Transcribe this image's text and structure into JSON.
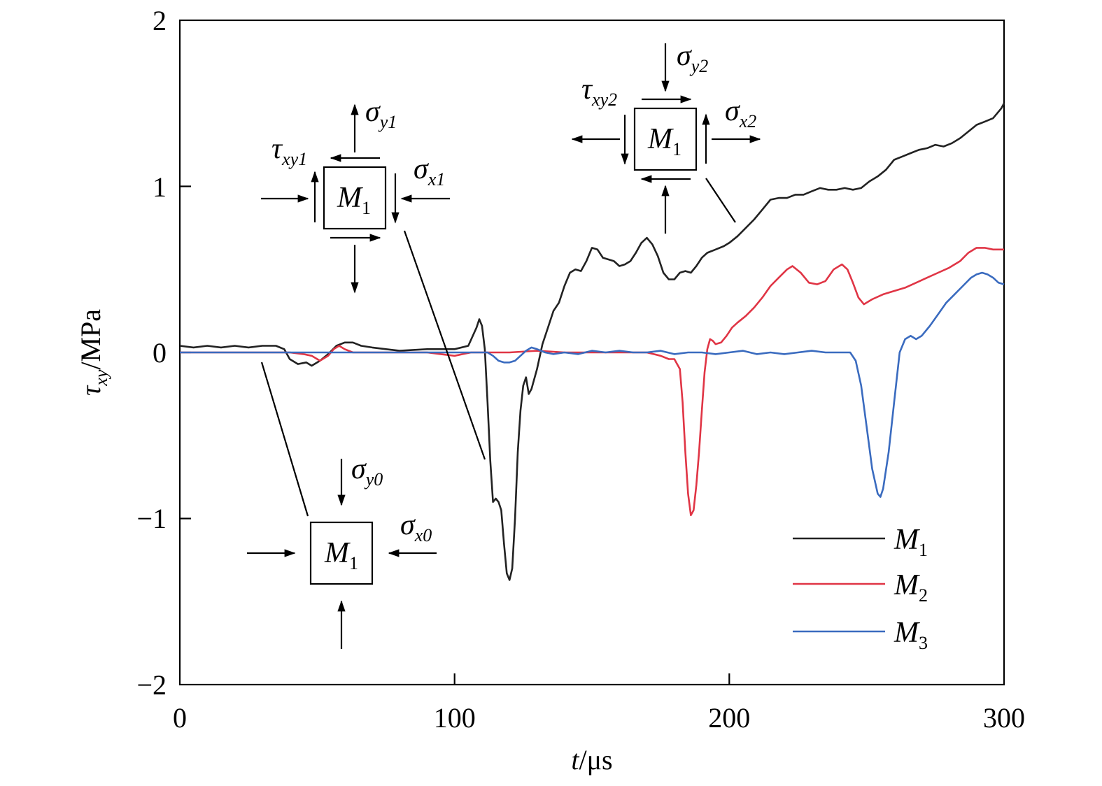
{
  "chart_data": {
    "type": "line",
    "xlabel": {
      "var": "t",
      "unit": "/μs"
    },
    "ylabel": {
      "sym": "τ",
      "sub": "xy",
      "unit": "/MPa"
    },
    "xlim": [
      0,
      300
    ],
    "ylim": [
      -2,
      2
    ],
    "xticks": [
      "0",
      "100",
      "200",
      "300"
    ],
    "yticks": [
      "−2",
      "−1",
      "0",
      "1",
      "2"
    ],
    "grid": false,
    "legend_position": "bottom-right",
    "series": [
      {
        "name": "M1",
        "label_main": "M",
        "label_sub": "1",
        "color": "#222222",
        "points": [
          [
            0,
            0.04
          ],
          [
            5,
            0.03
          ],
          [
            10,
            0.04
          ],
          [
            15,
            0.03
          ],
          [
            20,
            0.04
          ],
          [
            25,
            0.03
          ],
          [
            30,
            0.04
          ],
          [
            35,
            0.04
          ],
          [
            38,
            0.02
          ],
          [
            40,
            -0.04
          ],
          [
            43,
            -0.07
          ],
          [
            46,
            -0.06
          ],
          [
            48,
            -0.08
          ],
          [
            51,
            -0.05
          ],
          [
            54,
            -0.01
          ],
          [
            57,
            0.04
          ],
          [
            60,
            0.06
          ],
          [
            63,
            0.06
          ],
          [
            66,
            0.04
          ],
          [
            70,
            0.03
          ],
          [
            75,
            0.02
          ],
          [
            80,
            0.01
          ],
          [
            90,
            0.02
          ],
          [
            100,
            0.02
          ],
          [
            105,
            0.04
          ],
          [
            108,
            0.15
          ],
          [
            109,
            0.2
          ],
          [
            110,
            0.16
          ],
          [
            111,
            0.02
          ],
          [
            112,
            -0.3
          ],
          [
            113,
            -0.65
          ],
          [
            114,
            -0.9
          ],
          [
            115,
            -0.88
          ],
          [
            116,
            -0.9
          ],
          [
            117,
            -0.95
          ],
          [
            118,
            -1.15
          ],
          [
            119,
            -1.33
          ],
          [
            120,
            -1.37
          ],
          [
            121,
            -1.3
          ],
          [
            122,
            -1.0
          ],
          [
            123,
            -0.6
          ],
          [
            124,
            -0.35
          ],
          [
            125,
            -0.2
          ],
          [
            126,
            -0.15
          ],
          [
            127,
            -0.25
          ],
          [
            128,
            -0.22
          ],
          [
            130,
            -0.1
          ],
          [
            132,
            0.05
          ],
          [
            134,
            0.15
          ],
          [
            136,
            0.25
          ],
          [
            138,
            0.3
          ],
          [
            140,
            0.4
          ],
          [
            142,
            0.48
          ],
          [
            144,
            0.5
          ],
          [
            146,
            0.49
          ],
          [
            148,
            0.55
          ],
          [
            150,
            0.63
          ],
          [
            152,
            0.62
          ],
          [
            154,
            0.57
          ],
          [
            156,
            0.56
          ],
          [
            158,
            0.55
          ],
          [
            160,
            0.52
          ],
          [
            162,
            0.53
          ],
          [
            164,
            0.55
          ],
          [
            166,
            0.6
          ],
          [
            168,
            0.66
          ],
          [
            170,
            0.69
          ],
          [
            172,
            0.65
          ],
          [
            174,
            0.58
          ],
          [
            176,
            0.48
          ],
          [
            178,
            0.44
          ],
          [
            180,
            0.44
          ],
          [
            182,
            0.48
          ],
          [
            184,
            0.49
          ],
          [
            186,
            0.48
          ],
          [
            188,
            0.52
          ],
          [
            190,
            0.57
          ],
          [
            192,
            0.6
          ],
          [
            195,
            0.62
          ],
          [
            198,
            0.64
          ],
          [
            200,
            0.66
          ],
          [
            203,
            0.7
          ],
          [
            206,
            0.75
          ],
          [
            209,
            0.8
          ],
          [
            212,
            0.86
          ],
          [
            215,
            0.92
          ],
          [
            218,
            0.93
          ],
          [
            221,
            0.93
          ],
          [
            224,
            0.95
          ],
          [
            227,
            0.95
          ],
          [
            230,
            0.97
          ],
          [
            233,
            0.99
          ],
          [
            236,
            0.98
          ],
          [
            239,
            0.98
          ],
          [
            242,
            0.99
          ],
          [
            245,
            0.98
          ],
          [
            248,
            0.99
          ],
          [
            251,
            1.03
          ],
          [
            254,
            1.06
          ],
          [
            257,
            1.1
          ],
          [
            260,
            1.16
          ],
          [
            263,
            1.18
          ],
          [
            266,
            1.2
          ],
          [
            269,
            1.22
          ],
          [
            272,
            1.23
          ],
          [
            275,
            1.25
          ],
          [
            278,
            1.24
          ],
          [
            281,
            1.26
          ],
          [
            284,
            1.29
          ],
          [
            287,
            1.33
          ],
          [
            290,
            1.37
          ],
          [
            293,
            1.39
          ],
          [
            296,
            1.41
          ],
          [
            299,
            1.47
          ],
          [
            300,
            1.5
          ]
        ]
      },
      {
        "name": "M2",
        "label_main": "M",
        "label_sub": "2",
        "color": "#e03545",
        "points": [
          [
            0,
            0.0
          ],
          [
            40,
            0.0
          ],
          [
            45,
            -0.01
          ],
          [
            48,
            -0.02
          ],
          [
            51,
            -0.05
          ],
          [
            54,
            -0.02
          ],
          [
            56,
            0.02
          ],
          [
            58,
            0.04
          ],
          [
            60,
            0.02
          ],
          [
            63,
            0.0
          ],
          [
            70,
            0.0
          ],
          [
            90,
            0.0
          ],
          [
            95,
            -0.01
          ],
          [
            100,
            -0.02
          ],
          [
            103,
            -0.01
          ],
          [
            106,
            0.0
          ],
          [
            110,
            0.0
          ],
          [
            120,
            0.0
          ],
          [
            130,
            0.01
          ],
          [
            140,
            0.0
          ],
          [
            150,
            0.0
          ],
          [
            160,
            0.0
          ],
          [
            170,
            0.0
          ],
          [
            175,
            -0.02
          ],
          [
            178,
            -0.04
          ],
          [
            180,
            -0.04
          ],
          [
            182,
            -0.1
          ],
          [
            183,
            -0.3
          ],
          [
            184,
            -0.6
          ],
          [
            185,
            -0.85
          ],
          [
            186,
            -0.98
          ],
          [
            187,
            -0.95
          ],
          [
            188,
            -0.8
          ],
          [
            189,
            -0.6
          ],
          [
            190,
            -0.35
          ],
          [
            191,
            -0.12
          ],
          [
            192,
            0.02
          ],
          [
            193,
            0.08
          ],
          [
            194,
            0.07
          ],
          [
            195,
            0.05
          ],
          [
            197,
            0.06
          ],
          [
            199,
            0.1
          ],
          [
            201,
            0.15
          ],
          [
            203,
            0.18
          ],
          [
            206,
            0.22
          ],
          [
            209,
            0.27
          ],
          [
            212,
            0.33
          ],
          [
            215,
            0.4
          ],
          [
            218,
            0.45
          ],
          [
            221,
            0.5
          ],
          [
            223,
            0.52
          ],
          [
            226,
            0.48
          ],
          [
            229,
            0.42
          ],
          [
            232,
            0.41
          ],
          [
            235,
            0.43
          ],
          [
            238,
            0.5
          ],
          [
            241,
            0.53
          ],
          [
            243,
            0.5
          ],
          [
            245,
            0.42
          ],
          [
            247,
            0.33
          ],
          [
            249,
            0.29
          ],
          [
            252,
            0.32
          ],
          [
            256,
            0.35
          ],
          [
            260,
            0.37
          ],
          [
            264,
            0.39
          ],
          [
            268,
            0.42
          ],
          [
            272,
            0.45
          ],
          [
            276,
            0.48
          ],
          [
            280,
            0.51
          ],
          [
            284,
            0.55
          ],
          [
            287,
            0.6
          ],
          [
            290,
            0.63
          ],
          [
            293,
            0.63
          ],
          [
            296,
            0.62
          ],
          [
            300,
            0.62
          ]
        ]
      },
      {
        "name": "M3",
        "label_main": "M",
        "label_sub": "3",
        "color": "#3a6bbf",
        "points": [
          [
            0,
            0.0
          ],
          [
            50,
            0.0
          ],
          [
            100,
            0.0
          ],
          [
            112,
            0.0
          ],
          [
            114,
            -0.02
          ],
          [
            116,
            -0.05
          ],
          [
            118,
            -0.06
          ],
          [
            120,
            -0.06
          ],
          [
            122,
            -0.05
          ],
          [
            124,
            -0.02
          ],
          [
            126,
            0.01
          ],
          [
            128,
            0.03
          ],
          [
            130,
            0.02
          ],
          [
            133,
            0.0
          ],
          [
            136,
            -0.01
          ],
          [
            140,
            0.0
          ],
          [
            145,
            -0.01
          ],
          [
            150,
            0.01
          ],
          [
            155,
            0.0
          ],
          [
            160,
            0.01
          ],
          [
            165,
            0.0
          ],
          [
            170,
            0.0
          ],
          [
            175,
            0.01
          ],
          [
            180,
            -0.01
          ],
          [
            185,
            0.0
          ],
          [
            190,
            0.0
          ],
          [
            195,
            -0.01
          ],
          [
            200,
            0.0
          ],
          [
            205,
            0.01
          ],
          [
            210,
            -0.01
          ],
          [
            215,
            0.0
          ],
          [
            220,
            -0.01
          ],
          [
            225,
            0.0
          ],
          [
            230,
            0.01
          ],
          [
            235,
            0.0
          ],
          [
            240,
            0.0
          ],
          [
            244,
            0.0
          ],
          [
            246,
            -0.05
          ],
          [
            248,
            -0.2
          ],
          [
            250,
            -0.45
          ],
          [
            252,
            -0.7
          ],
          [
            254,
            -0.85
          ],
          [
            255,
            -0.87
          ],
          [
            256,
            -0.82
          ],
          [
            258,
            -0.6
          ],
          [
            260,
            -0.3
          ],
          [
            262,
            0.0
          ],
          [
            264,
            0.08
          ],
          [
            266,
            0.1
          ],
          [
            268,
            0.08
          ],
          [
            270,
            0.1
          ],
          [
            273,
            0.16
          ],
          [
            276,
            0.23
          ],
          [
            279,
            0.3
          ],
          [
            282,
            0.35
          ],
          [
            285,
            0.4
          ],
          [
            288,
            0.45
          ],
          [
            290,
            0.47
          ],
          [
            292,
            0.48
          ],
          [
            294,
            0.47
          ],
          [
            296,
            0.45
          ],
          [
            298,
            0.42
          ],
          [
            300,
            0.41
          ]
        ]
      }
    ],
    "insets": [
      {
        "id": "inset0",
        "box_main": "M",
        "box_sub": "1",
        "sx_sym": "σ",
        "sx_sub": "x0",
        "sy_sym": "σ",
        "sy_sub": "y0"
      },
      {
        "id": "inset1",
        "box_main": "M",
        "box_sub": "1",
        "sx_sym": "σ",
        "sx_sub": "x1",
        "sy_sym": "σ",
        "sy_sub": "y1",
        "tau_sym": "τ",
        "tau_sub": "xy1"
      },
      {
        "id": "inset2",
        "box_main": "M",
        "box_sub": "1",
        "sx_sym": "σ",
        "sx_sub": "x2",
        "sy_sym": "σ",
        "sy_sub": "y2",
        "tau_sym": "τ",
        "tau_sub": "xy2"
      }
    ]
  }
}
